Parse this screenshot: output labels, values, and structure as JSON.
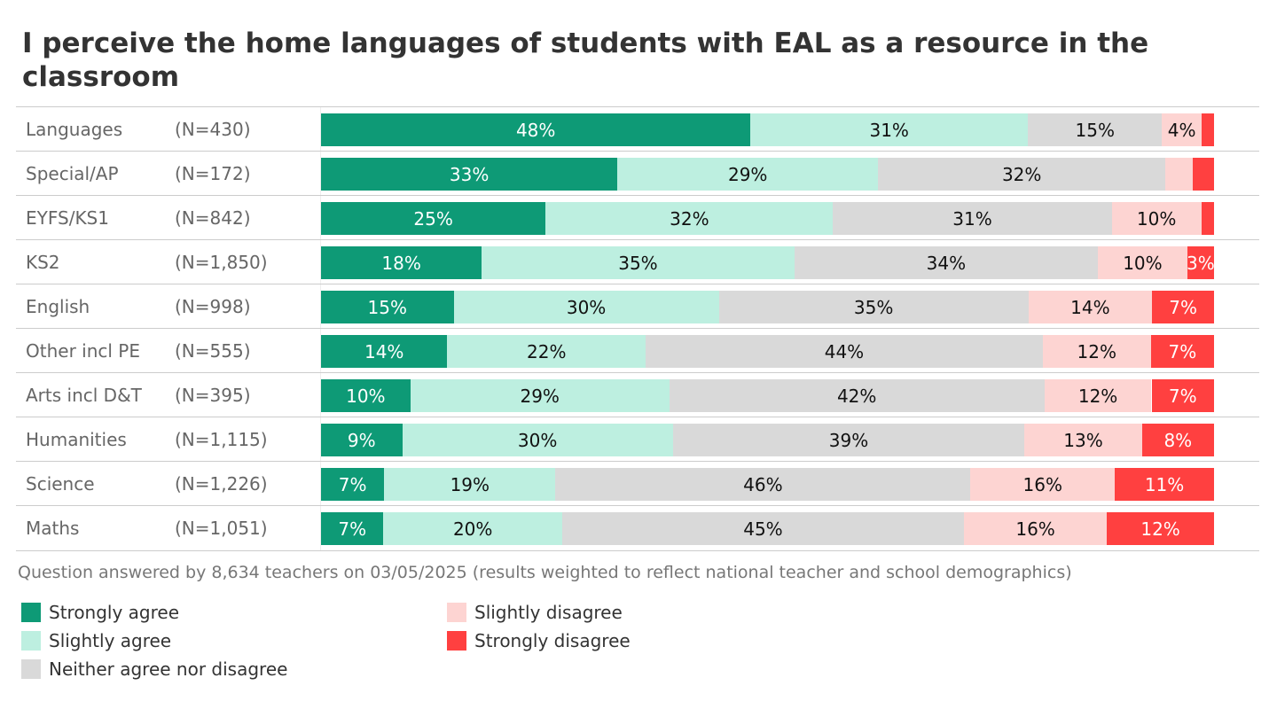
{
  "chart_data": {
    "type": "bar",
    "orientation": "horizontal-stacked-100",
    "title": "I perceive the home languages of students with EAL as a resource in the classroom",
    "footer": "Question answered by 8,634 teachers on 03/05/2025 (results weighted to reflect national teacher and school demographics)",
    "xlim": [
      0,
      100
    ],
    "series": [
      {
        "name": "Strongly agree",
        "color": "#0e9a76",
        "text_color": "#ffffff"
      },
      {
        "name": "Slightly agree",
        "color": "#bdefe0",
        "text_color": "#111111"
      },
      {
        "name": "Neither agree nor disagree",
        "color": "#d9d9d9",
        "text_color": "#111111"
      },
      {
        "name": "Slightly disagree",
        "color": "#fdd4d2",
        "text_color": "#111111"
      },
      {
        "name": "Strongly disagree",
        "color": "#ff4040",
        "text_color": "#ffffff"
      }
    ],
    "rows": [
      {
        "category": "Languages",
        "n": "(N=430)",
        "values": [
          48,
          31,
          15,
          4.4,
          1.4
        ],
        "labels": [
          "48%",
          "31%",
          "15%",
          "4%",
          null
        ]
      },
      {
        "category": "Special/AP",
        "n": "(N=172)",
        "values": [
          33,
          29,
          32,
          3,
          2.4
        ],
        "labels": [
          "33%",
          "29%",
          "32%",
          null,
          null
        ]
      },
      {
        "category": "EYFS/KS1",
        "n": "(N=842)",
        "values": [
          25,
          32,
          31,
          10,
          1.4
        ],
        "labels": [
          "25%",
          "32%",
          "31%",
          "10%",
          null
        ]
      },
      {
        "category": "KS2",
        "n": "(N=1,850)",
        "values": [
          18,
          35,
          34,
          10,
          3
        ],
        "labels": [
          "18%",
          "35%",
          "34%",
          "10%",
          "3%"
        ]
      },
      {
        "category": "English",
        "n": "(N=998)",
        "values": [
          15,
          30,
          35,
          14,
          7
        ],
        "labels": [
          "15%",
          "30%",
          "35%",
          "14%",
          "7%"
        ]
      },
      {
        "category": "Other incl PE",
        "n": "(N=555)",
        "values": [
          14,
          22,
          44,
          12,
          7
        ],
        "labels": [
          "14%",
          "22%",
          "44%",
          "12%",
          "7%"
        ]
      },
      {
        "category": "Arts incl D&T",
        "n": "(N=395)",
        "values": [
          10,
          29,
          42,
          12,
          7
        ],
        "labels": [
          "10%",
          "29%",
          "42%",
          "12%",
          "7%"
        ]
      },
      {
        "category": "Humanities",
        "n": "(N=1,115)",
        "values": [
          9,
          30,
          39,
          13,
          8
        ],
        "labels": [
          "9%",
          "30%",
          "39%",
          "13%",
          "8%"
        ]
      },
      {
        "category": "Science",
        "n": "(N=1,226)",
        "values": [
          7,
          19,
          46,
          16,
          11
        ],
        "labels": [
          "7%",
          "19%",
          "46%",
          "16%",
          "11%"
        ]
      },
      {
        "category": "Maths",
        "n": "(N=1,051)",
        "values": [
          7,
          20,
          45,
          16,
          12
        ],
        "labels": [
          "7%",
          "20%",
          "45%",
          "16%",
          "12%"
        ]
      }
    ]
  }
}
